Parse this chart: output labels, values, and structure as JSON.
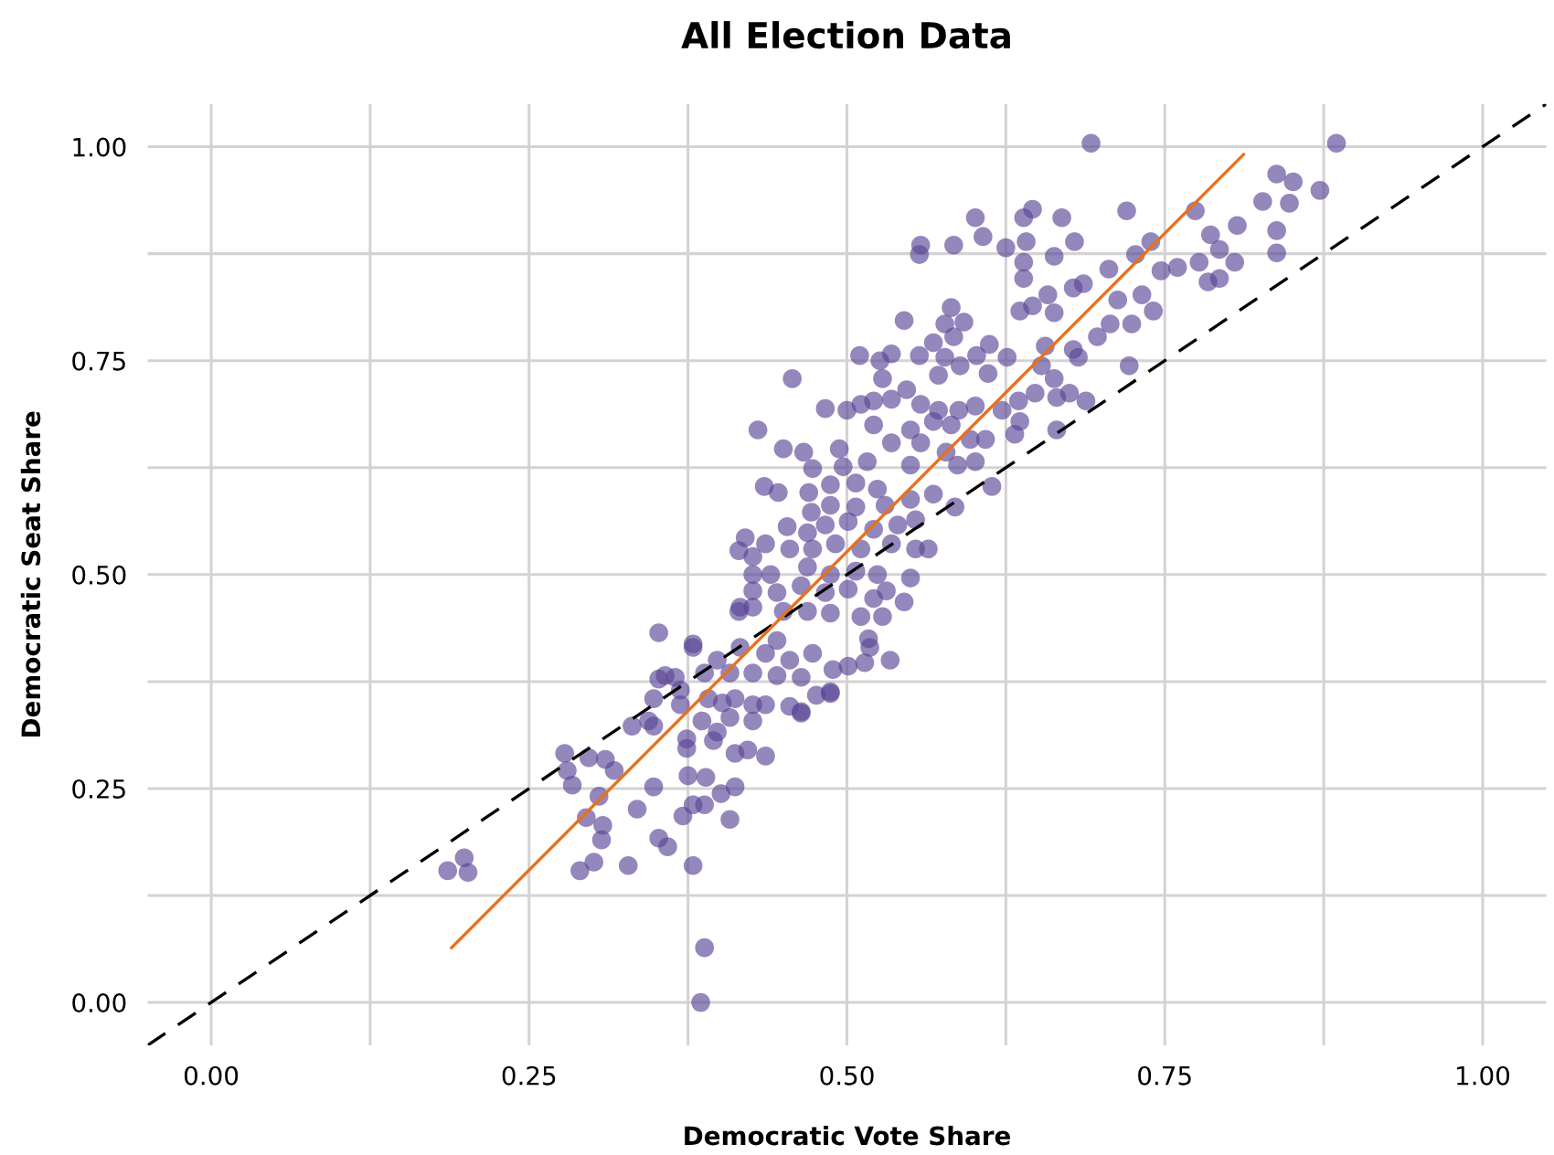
{
  "chart_data": {
    "type": "scatter",
    "title": "All Election Data",
    "xlabel": "Democratic Vote Share",
    "ylabel": "Democratic Seat Share",
    "xlim": [
      -0.05,
      1.05
    ],
    "ylim": [
      -0.05,
      1.05
    ],
    "xticks": [
      {
        "value": 0,
        "label": "0.00"
      },
      {
        "value": 0.125,
        "label": null
      },
      {
        "value": 0.25,
        "label": "0.25"
      },
      {
        "value": 0.375,
        "label": null
      },
      {
        "value": 0.5,
        "label": "0.50"
      },
      {
        "value": 0.625,
        "label": null
      },
      {
        "value": 0.75,
        "label": "0.75"
      },
      {
        "value": 0.875,
        "label": null
      },
      {
        "value": 1,
        "label": "1.00"
      }
    ],
    "yticks": [
      {
        "value": 0,
        "label": "0.00"
      },
      {
        "value": 0.125,
        "label": null
      },
      {
        "value": 0.25,
        "label": "0.25"
      },
      {
        "value": 0.375,
        "label": null
      },
      {
        "value": 0.5,
        "label": "0.50"
      },
      {
        "value": 0.625,
        "label": null
      },
      {
        "value": 0.75,
        "label": "0.75"
      },
      {
        "value": 0.875,
        "label": null
      },
      {
        "value": 1,
        "label": "1.00"
      }
    ],
    "grid": true,
    "legend": false,
    "marker": "circle",
    "series": [
      {
        "color": "#5b4796",
        "x": [
          0.186,
          0.199,
          0.202,
          0.278,
          0.28,
          0.284,
          0.297,
          0.31,
          0.317,
          0.305,
          0.295,
          0.308,
          0.307,
          0.301,
          0.29,
          0.328,
          0.335,
          0.352,
          0.348,
          0.348,
          0.352,
          0.359,
          0.379,
          0.371,
          0.379,
          0.388,
          0.375,
          0.389,
          0.401,
          0.412,
          0.408,
          0.388,
          0.385,
          0.374,
          0.386,
          0.395,
          0.412,
          0.436,
          0.422,
          0.402,
          0.426,
          0.464,
          0.487,
          0.357,
          0.369,
          0.344,
          0.379,
          0.416,
          0.445,
          0.692,
          0.885,
          0.838,
          0.851,
          0.872,
          0.827,
          0.848,
          0.838,
          0.838,
          0.807,
          0.786,
          0.793,
          0.805,
          0.784,
          0.793,
          0.774,
          0.777,
          0.76,
          0.747,
          0.72,
          0.739,
          0.741,
          0.732,
          0.722,
          0.724,
          0.713,
          0.706,
          0.727,
          0.697,
          0.707,
          0.686,
          0.679,
          0.669,
          0.646,
          0.639,
          0.641,
          0.639,
          0.639,
          0.663,
          0.625,
          0.607,
          0.601,
          0.584,
          0.558,
          0.557,
          0.658,
          0.646,
          0.636,
          0.663,
          0.678,
          0.582,
          0.577,
          0.592,
          0.584,
          0.545,
          0.568,
          0.612,
          0.656,
          0.678,
          0.51,
          0.526,
          0.535,
          0.557,
          0.577,
          0.602,
          0.626,
          0.682,
          0.653,
          0.457,
          0.528,
          0.547,
          0.572,
          0.589,
          0.611,
          0.663,
          0.665,
          0.675,
          0.688,
          0.648,
          0.635,
          0.622,
          0.483,
          0.5,
          0.511,
          0.521,
          0.535,
          0.558,
          0.572,
          0.588,
          0.601,
          0.636,
          0.632,
          0.665,
          0.609,
          0.597,
          0.43,
          0.45,
          0.466,
          0.494,
          0.521,
          0.55,
          0.568,
          0.582,
          0.558,
          0.535,
          0.578,
          0.473,
          0.497,
          0.516,
          0.55,
          0.587,
          0.601,
          0.614,
          0.585,
          0.435,
          0.446,
          0.47,
          0.487,
          0.507,
          0.524,
          0.55,
          0.568,
          0.53,
          0.507,
          0.487,
          0.472,
          0.453,
          0.469,
          0.483,
          0.501,
          0.521,
          0.54,
          0.554,
          0.42,
          0.415,
          0.426,
          0.436,
          0.455,
          0.473,
          0.491,
          0.511,
          0.535,
          0.564,
          0.554,
          0.426,
          0.44,
          0.469,
          0.487,
          0.507,
          0.524,
          0.55,
          0.531,
          0.545,
          0.426,
          0.445,
          0.464,
          0.483,
          0.501,
          0.521,
          0.415,
          0.426,
          0.45,
          0.469,
          0.487,
          0.511,
          0.528,
          0.517,
          0.518,
          0.534,
          0.514,
          0.501,
          0.487,
          0.476,
          0.489,
          0.473,
          0.455,
          0.436,
          0.416,
          0.398,
          0.379,
          0.388,
          0.408,
          0.426,
          0.445,
          0.464,
          0.365,
          0.352,
          0.348,
          0.369,
          0.391,
          0.412,
          0.436,
          0.455,
          0.464,
          0.426,
          0.408,
          0.374,
          0.398,
          0.331
        ],
        "values": [
          0.154,
          0.169,
          0.152,
          0.291,
          0.271,
          0.254,
          0.286,
          0.284,
          0.271,
          0.241,
          0.216,
          0.207,
          0.19,
          0.164,
          0.154,
          0.16,
          0.226,
          0.432,
          0.323,
          0.252,
          0.192,
          0.182,
          0.16,
          0.218,
          0.231,
          0.231,
          0.265,
          0.263,
          0.244,
          0.252,
          0.214,
          0.064,
          0.0,
          0.297,
          0.329,
          0.306,
          0.291,
          0.288,
          0.295,
          0.35,
          0.348,
          0.34,
          0.363,
          0.382,
          0.365,
          0.329,
          0.419,
          0.462,
          0.423,
          1.004,
          1.004,
          0.968,
          0.959,
          0.949,
          0.936,
          0.934,
          0.902,
          0.876,
          0.908,
          0.897,
          0.88,
          0.865,
          0.842,
          0.846,
          0.925,
          0.865,
          0.859,
          0.855,
          0.925,
          0.889,
          0.808,
          0.827,
          0.744,
          0.793,
          0.821,
          0.857,
          0.874,
          0.778,
          0.793,
          0.84,
          0.889,
          0.917,
          0.927,
          0.917,
          0.889,
          0.865,
          0.846,
          0.872,
          0.882,
          0.895,
          0.917,
          0.885,
          0.885,
          0.874,
          0.827,
          0.814,
          0.808,
          0.806,
          0.835,
          0.812,
          0.793,
          0.795,
          0.778,
          0.797,
          0.771,
          0.769,
          0.767,
          0.763,
          0.756,
          0.75,
          0.758,
          0.756,
          0.754,
          0.756,
          0.754,
          0.754,
          0.744,
          0.729,
          0.729,
          0.716,
          0.733,
          0.744,
          0.735,
          0.729,
          0.707,
          0.712,
          0.703,
          0.712,
          0.703,
          0.692,
          0.694,
          0.692,
          0.699,
          0.703,
          0.705,
          0.699,
          0.692,
          0.692,
          0.697,
          0.679,
          0.664,
          0.669,
          0.658,
          0.658,
          0.669,
          0.647,
          0.643,
          0.647,
          0.675,
          0.669,
          0.679,
          0.675,
          0.654,
          0.654,
          0.643,
          0.624,
          0.626,
          0.632,
          0.628,
          0.628,
          0.632,
          0.603,
          0.579,
          0.603,
          0.596,
          0.596,
          0.605,
          0.607,
          0.6,
          0.588,
          0.594,
          0.581,
          0.579,
          0.581,
          0.573,
          0.556,
          0.549,
          0.558,
          0.562,
          0.553,
          0.558,
          0.564,
          0.543,
          0.528,
          0.521,
          0.536,
          0.53,
          0.53,
          0.536,
          0.53,
          0.536,
          0.53,
          0.53,
          0.5,
          0.5,
          0.509,
          0.5,
          0.504,
          0.5,
          0.496,
          0.481,
          0.468,
          0.481,
          0.479,
          0.487,
          0.479,
          0.483,
          0.472,
          0.457,
          0.462,
          0.457,
          0.457,
          0.455,
          0.451,
          0.451,
          0.425,
          0.415,
          0.4,
          0.397,
          0.393,
          0.361,
          0.359,
          0.389,
          0.408,
          0.4,
          0.408,
          0.415,
          0.4,
          0.415,
          0.385,
          0.385,
          0.385,
          0.382,
          0.38,
          0.38,
          0.378,
          0.355,
          0.348,
          0.355,
          0.355,
          0.348,
          0.346,
          0.338,
          0.329,
          0.333,
          0.308,
          0.316,
          0.323
        ]
      },
      {
        "type": "line",
        "color": "#000000",
        "line_style": "dashed",
        "marker": "none",
        "x": [
          -0.05,
          1.05
        ],
        "values": [
          -0.05,
          1.05
        ]
      },
      {
        "type": "line",
        "color": "#e8701c",
        "line_style": "solid",
        "marker": "none",
        "x": [
          0.189,
          0.812
        ],
        "values": [
          0.064,
          0.991
        ]
      }
    ]
  }
}
